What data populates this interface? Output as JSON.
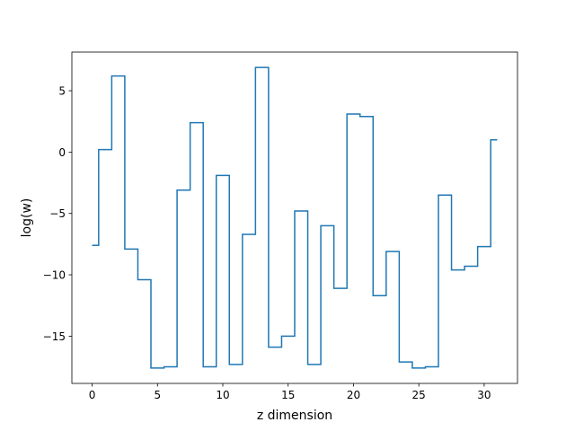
{
  "chart_data": {
    "type": "line",
    "drawstyle": "steps-mid",
    "title": "",
    "xlabel": "z dimension",
    "ylabel": "log(w)",
    "xlim": [
      -1.55,
      32.55
    ],
    "ylim": [
      -18.85,
      8.15
    ],
    "xticks": [
      0,
      5,
      10,
      15,
      20,
      25,
      30
    ],
    "yticks": [
      5,
      0,
      -5,
      -10,
      -15
    ],
    "ytick_labels": [
      "5",
      "0",
      "−5",
      "−10",
      "−15"
    ],
    "grid": false,
    "legend": false,
    "series": [
      {
        "color": "#1f77b4",
        "x": [
          0,
          1,
          2,
          3,
          4,
          5,
          6,
          7,
          8,
          9,
          10,
          11,
          12,
          13,
          14,
          15,
          16,
          17,
          18,
          19,
          20,
          21,
          22,
          23,
          24,
          25,
          26,
          27,
          28,
          29,
          30,
          31
        ],
        "y": [
          -7.6,
          0.2,
          6.2,
          -7.9,
          -10.4,
          -17.6,
          -17.5,
          -3.1,
          2.4,
          -17.5,
          -1.9,
          -17.3,
          -6.7,
          6.9,
          -15.9,
          -15.0,
          -4.8,
          -17.3,
          -6.0,
          -11.1,
          3.1,
          2.9,
          -11.7,
          -8.1,
          -17.1,
          -17.6,
          -17.5,
          -3.5,
          -9.6,
          -9.3,
          -7.7,
          1.0
        ]
      }
    ]
  }
}
